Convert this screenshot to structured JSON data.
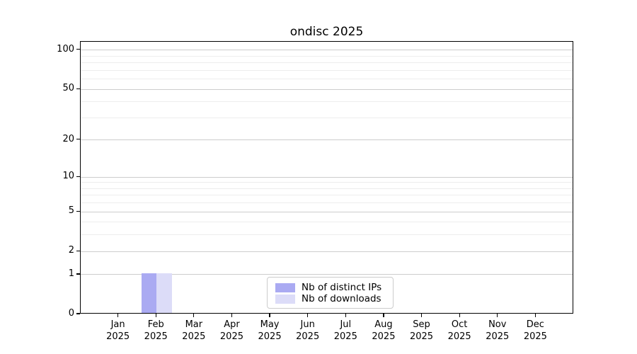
{
  "chart_data": {
    "type": "bar",
    "title": "ondisc 2025",
    "categories": [
      "Jan\n2025",
      "Feb\n2025",
      "Mar\n2025",
      "Apr\n2025",
      "May\n2025",
      "Jun\n2025",
      "Jul\n2025",
      "Aug\n2025",
      "Sep\n2025",
      "Oct\n2025",
      "Nov\n2025",
      "Dec\n2025"
    ],
    "series": [
      {
        "name": "Nb of distinct IPs",
        "color": "#aaaaf2",
        "values": [
          0,
          1,
          0,
          0,
          0,
          0,
          0,
          0,
          0,
          0,
          0,
          0
        ]
      },
      {
        "name": "Nb of downloads",
        "color": "#dcdcf8",
        "values": [
          0,
          1,
          0,
          0,
          0,
          0,
          0,
          0,
          0,
          0,
          0,
          0
        ]
      }
    ],
    "xlabel": "",
    "ylabel": "",
    "y_scale": "log1p",
    "ylim": [
      0,
      116
    ],
    "y_major_ticks": [
      0,
      1,
      2,
      5,
      10,
      20,
      50,
      100
    ],
    "y_minor_gridlines": [
      3,
      4,
      6,
      7,
      8,
      9,
      30,
      40,
      60,
      70,
      80,
      90
    ],
    "grid": true,
    "legend_position": "bottom-center"
  },
  "colors": {
    "axis": "#000000",
    "grid_major": "#cdcdcd",
    "grid_minor": "#ededed",
    "legend_border": "#cccccc",
    "background": "#ffffff"
  }
}
